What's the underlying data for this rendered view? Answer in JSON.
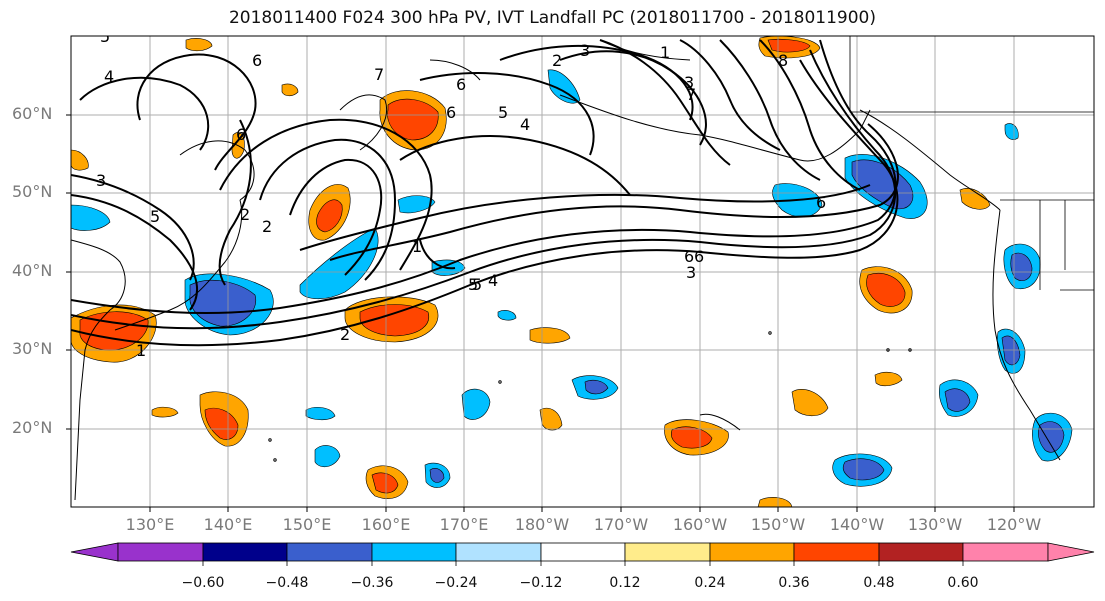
{
  "title": "2018011400 F024 300 hPa PV, IVT Landfall PC (2018011700 - 2018011900)",
  "lat_labels": [
    "60°N",
    "50°N",
    "40°N",
    "30°N",
    "20°N"
  ],
  "lon_labels": [
    "130°E",
    "140°E",
    "150°E",
    "160°E",
    "170°E",
    "180°W",
    "170°W",
    "160°W",
    "150°W",
    "140°W",
    "130°W",
    "120°W"
  ],
  "colorbar": {
    "tick_labels": [
      "−0.60",
      "−0.48",
      "−0.36",
      "−0.24",
      "−0.12",
      "0.12",
      "0.24",
      "0.36",
      "0.48",
      "0.60"
    ],
    "colors": [
      "#9932cc",
      "#00008b",
      "#3a5fcd",
      "#00bfff",
      "#b0e2ff",
      "#ffffff",
      "#ffec8b",
      "#ffa500",
      "#ff4500",
      "#b22222",
      "#ff82ab"
    ]
  },
  "contour_labels": [
    "5",
    "4",
    "3",
    "5",
    "6",
    "2",
    "6",
    "7",
    "6",
    "6",
    "5",
    "5",
    "4",
    "2",
    "3",
    "3",
    "7",
    "2",
    "6",
    "1",
    "5",
    "4",
    "6",
    "3",
    "2",
    "1",
    "1",
    "8",
    "6"
  ]
}
